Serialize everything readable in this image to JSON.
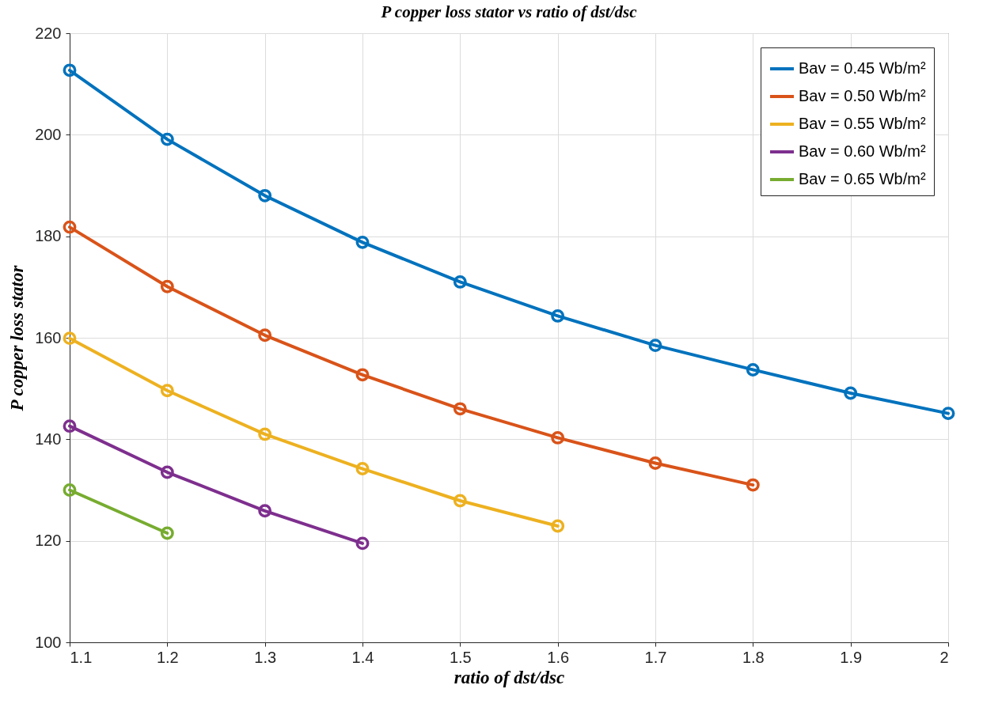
{
  "chart_data": {
    "type": "line",
    "title": "P copper loss stator vs ratio of dst/dsc",
    "xlabel": "ratio of dst/dsc",
    "ylabel": "P copper loss stator",
    "x": [
      1.1,
      1.2,
      1.3,
      1.4,
      1.5,
      1.6,
      1.7,
      1.8,
      1.9,
      2.0
    ],
    "series": [
      {
        "name": "Bav = 0.45 Wb/m²",
        "color": "#0072bd",
        "values": [
          212.7,
          199.1,
          188,
          178.8,
          171,
          164.3,
          158.5,
          153.7,
          149.1,
          145.1
        ]
      },
      {
        "name": "Bav = 0.50 Wb/m²",
        "color": "#d95319",
        "values": [
          181.8,
          170.1,
          160.5,
          152.7,
          146,
          140.3,
          135.3,
          131,
          null,
          null
        ]
      },
      {
        "name": "Bav = 0.55 Wb/m²",
        "color": "#edb120",
        "values": [
          159.9,
          149.6,
          141,
          134.2,
          127.9,
          122.9,
          null,
          null,
          null,
          null
        ]
      },
      {
        "name": "Bav = 0.60 Wb/m²",
        "color": "#7e2f8e",
        "values": [
          142.6,
          133.5,
          125.9,
          119.5,
          null,
          null,
          null,
          null,
          null,
          null
        ]
      },
      {
        "name": "Bav = 0.65 Wb/m²",
        "color": "#77ac30",
        "values": [
          130,
          121.5,
          null,
          null,
          null,
          null,
          null,
          null,
          null,
          null
        ]
      }
    ],
    "xlim": [
      1.1,
      2
    ],
    "xticks": [
      1.1,
      1.2,
      1.3,
      1.4,
      1.5,
      1.6,
      1.7,
      1.8,
      1.9,
      2
    ],
    "ylim": [
      100,
      220
    ],
    "yticks": [
      100,
      120,
      140,
      160,
      180,
      200,
      220
    ],
    "grid": true,
    "legend": "top right",
    "marker": "circle"
  }
}
